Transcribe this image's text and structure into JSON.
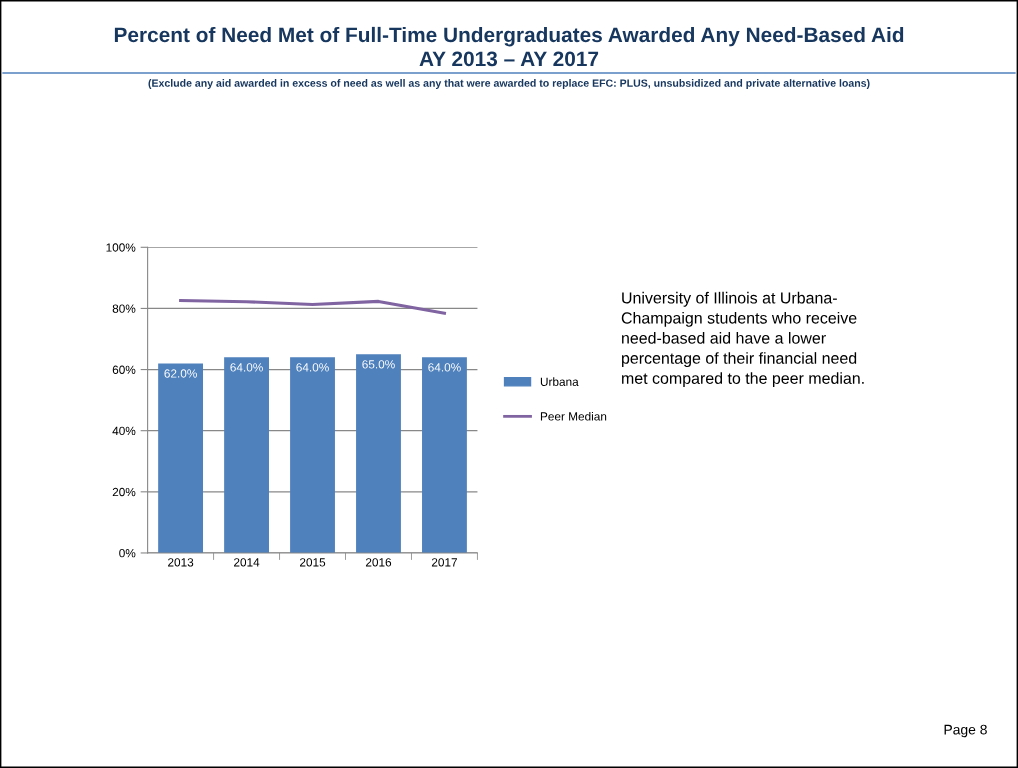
{
  "chart_data": {
    "type": "bar",
    "title": "Percent of Need Met of Full-Time Undergraduates Awarded Any Need-Based Aid\nAY 2013 – AY 2017",
    "subtitle": "(Exclude any aid awarded in excess of need as well as any that were awarded to replace EFC: PLUS, unsubsidized and private alternative loans)",
    "categories": [
      "2013",
      "2014",
      "2015",
      "2016",
      "2017"
    ],
    "series": [
      {
        "name": "Urbana",
        "color": "#4f81bd",
        "values": [
          62.0,
          64.0,
          64.0,
          65.0,
          64.0
        ],
        "value_labels": [
          "62.0%",
          "64.0%",
          "64.0%",
          "65.0%",
          "64.0%"
        ]
      },
      {
        "name": "Peer Median",
        "type": "line",
        "color": "#8064a2",
        "values": [
          82.6,
          82.2,
          81.3,
          82.3,
          78.4
        ]
      }
    ],
    "ylim": [
      0,
      100
    ],
    "yticks": [
      {
        "value": 0,
        "label": "0%"
      },
      {
        "value": 20,
        "label": "20%"
      },
      {
        "value": 40,
        "label": "40%"
      },
      {
        "value": 60,
        "label": "60%"
      },
      {
        "value": 80,
        "label": "80%"
      },
      {
        "value": 100,
        "label": "100%"
      }
    ],
    "grid": "y",
    "legend": "right",
    "marker": "none",
    "line_style": "solid",
    "annotations": [
      "University of Illinois at Urbana-\nChampaign students who receive\nneed-based aid have a lower\npercentage of their financial need\nmet compared to the peer median.",
      "Page 8"
    ]
  }
}
